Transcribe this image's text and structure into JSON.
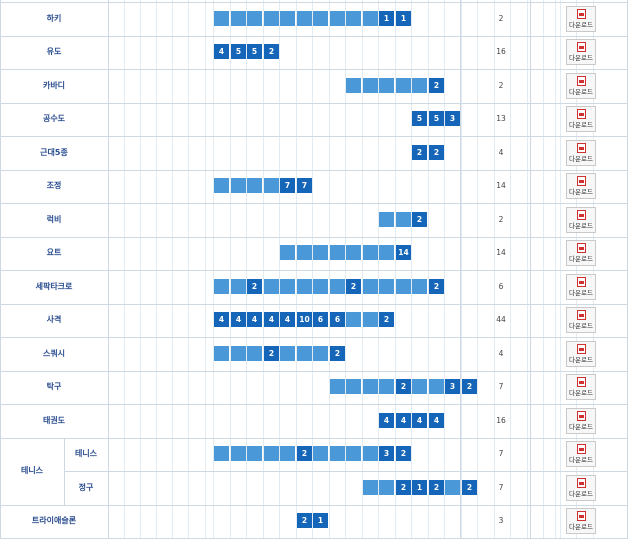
{
  "download_label": "다운로드",
  "colors": {
    "bar": "#4b98d8",
    "bar_marked": "#1565b8",
    "label": "#2a4d8f",
    "grid": "#cfd9e3"
  },
  "rows": [
    {
      "name": "하키",
      "count": "2",
      "cells": [
        "",
        "",
        "",
        "",
        "",
        "",
        "",
        "",
        "",
        "",
        "1",
        "1"
      ]
    },
    {
      "name": "유도",
      "count": "16",
      "cells": [
        "4",
        "5",
        "5",
        "2"
      ]
    },
    {
      "name": "카바디",
      "count": "2",
      "cells": [
        "",
        "",
        "",
        "",
        "",
        "2"
      ]
    },
    {
      "name": "공수도",
      "count": "13",
      "cells": [
        "5",
        "5",
        "3"
      ]
    },
    {
      "name": "근대5종",
      "count": "4",
      "cells": [
        "2",
        "2"
      ]
    },
    {
      "name": "조정",
      "count": "14",
      "cells": [
        "",
        "",
        "",
        "",
        "7",
        "7"
      ]
    },
    {
      "name": "럭비",
      "count": "2",
      "cells": [
        "",
        "",
        "2"
      ]
    },
    {
      "name": "요트",
      "count": "14",
      "cells": [
        "",
        "",
        "",
        "",
        "",
        "",
        "",
        "14"
      ]
    },
    {
      "name": "세팍타크로",
      "count": "6",
      "cells": [
        "",
        "",
        "2",
        "",
        "",
        "",
        "",
        "",
        "2",
        "",
        "",
        "",
        "",
        "2"
      ]
    },
    {
      "name": "사격",
      "count": "44",
      "cells": [
        "4",
        "4",
        "4",
        "4",
        "4",
        "10",
        "6",
        "6",
        "",
        "",
        "2"
      ]
    },
    {
      "name": "스쿼시",
      "count": "4",
      "cells": [
        "",
        "",
        "",
        "2",
        "",
        "",
        "",
        "2"
      ]
    },
    {
      "name": "탁구",
      "count": "7",
      "cells": [
        "",
        "",
        "",
        "",
        "2",
        "",
        "",
        "3",
        "2"
      ]
    },
    {
      "name": "태권도",
      "count": "16",
      "cells": [
        "4",
        "4",
        "4",
        "4"
      ]
    },
    {
      "group": "테니스",
      "name": "테니스",
      "count": "7",
      "cells": [
        "",
        "",
        "",
        "",
        "",
        "2",
        "",
        "",
        "",
        "",
        "3",
        "2"
      ]
    },
    {
      "group": "테니스",
      "name": "정구",
      "count": "7",
      "cells": [
        "",
        "",
        "2",
        "1",
        "2",
        "",
        "2"
      ]
    },
    {
      "name": "트라이애슬론",
      "count": "3",
      "cells": [
        "2",
        "1"
      ]
    }
  ]
}
